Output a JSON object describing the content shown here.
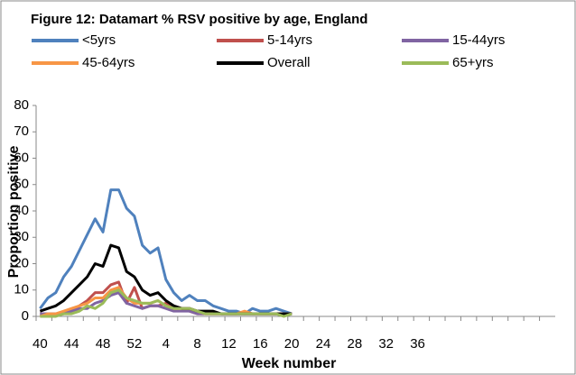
{
  "chart_data": {
    "type": "line",
    "title": "Figure 12: Datamart % RSV positive by age, England",
    "x_label": "Week number",
    "y_label": "Proportion positive",
    "categories": [
      40,
      null,
      null,
      null,
      44,
      null,
      null,
      null,
      48,
      null,
      null,
      null,
      52,
      null,
      null,
      null,
      4,
      null,
      null,
      null,
      8,
      null,
      null,
      null,
      12,
      null,
      null,
      null,
      16,
      null,
      null,
      null,
      20,
      null,
      null,
      null,
      24,
      null,
      null,
      null,
      28,
      null,
      null,
      null,
      32,
      null,
      null,
      null,
      36,
      null,
      null,
      null,
      null,
      null,
      null,
      null,
      null,
      null,
      null,
      null,
      null,
      null,
      null,
      null,
      null,
      null
    ],
    "ylim": [
      0,
      80
    ],
    "yticks": [
      0,
      10,
      20,
      30,
      40,
      50,
      60,
      70,
      80
    ],
    "grid": false,
    "series": [
      {
        "name": "<5yrs",
        "color": "#4f81bd",
        "values": [
          3,
          7,
          9,
          15,
          19,
          25,
          31,
          37,
          32,
          48,
          48,
          41,
          38,
          27,
          24,
          26,
          14,
          9,
          6,
          8,
          6,
          6,
          4,
          3,
          2,
          2,
          1,
          3,
          2,
          2,
          3,
          2,
          1,
          null,
          null,
          null,
          null,
          null,
          null,
          null,
          null,
          null,
          null,
          null,
          null,
          null,
          null,
          null,
          null,
          null,
          null,
          null,
          null,
          null,
          null,
          null,
          null,
          null,
          null,
          null,
          null,
          null,
          null,
          null,
          null,
          null
        ]
      },
      {
        "name": "5-14yrs",
        "color": "#c0504d",
        "values": [
          1,
          1,
          1,
          1,
          2,
          4,
          6,
          9,
          9,
          12,
          13,
          5,
          11,
          3,
          4,
          4,
          5,
          4,
          3,
          2,
          1,
          1,
          1,
          1,
          1,
          1,
          1,
          1,
          1,
          1,
          1,
          1,
          1,
          null,
          null,
          null,
          null,
          null,
          null,
          null,
          null,
          null,
          null,
          null,
          null,
          null,
          null,
          null,
          null,
          null,
          null,
          null,
          null,
          null,
          null,
          null,
          null,
          null,
          null,
          null,
          null,
          null,
          null,
          null,
          null,
          null
        ]
      },
      {
        "name": "15-44yrs",
        "color": "#8064a2",
        "values": [
          1,
          1,
          1,
          1,
          2,
          3,
          3,
          5,
          6,
          8,
          9,
          5,
          4,
          3,
          4,
          4,
          3,
          2,
          2,
          2,
          1,
          1,
          1,
          1,
          1,
          1,
          1,
          1,
          1,
          1,
          1,
          1,
          1,
          null,
          null,
          null,
          null,
          null,
          null,
          null,
          null,
          null,
          null,
          null,
          null,
          null,
          null,
          null,
          null,
          null,
          null,
          null,
          null,
          null,
          null,
          null,
          null,
          null,
          null,
          null,
          null,
          null,
          null,
          null,
          null,
          null
        ]
      },
      {
        "name": "45-64yrs",
        "color": "#f79646",
        "values": [
          0,
          1,
          1,
          2,
          3,
          4,
          5,
          7,
          7,
          10,
          11,
          7,
          5,
          5,
          5,
          6,
          4,
          3,
          3,
          3,
          2,
          1,
          1,
          1,
          1,
          1,
          2,
          1,
          1,
          1,
          1,
          1,
          1,
          null,
          null,
          null,
          null,
          null,
          null,
          null,
          null,
          null,
          null,
          null,
          null,
          null,
          null,
          null,
          null,
          null,
          null,
          null,
          null,
          null,
          null,
          null,
          null,
          null,
          null,
          null,
          null,
          null,
          null,
          null,
          null,
          null
        ]
      },
      {
        "name": "Overall",
        "color": "#000000",
        "values": [
          2,
          3,
          4,
          6,
          9,
          12,
          15,
          20,
          19,
          27,
          26,
          17,
          15,
          10,
          8,
          9,
          6,
          4,
          3,
          3,
          2,
          2,
          2,
          1,
          1,
          1,
          1,
          1,
          1,
          1,
          1,
          1,
          1,
          null,
          null,
          null,
          null,
          null,
          null,
          null,
          null,
          null,
          null,
          null,
          null,
          null,
          null,
          null,
          null,
          null,
          null,
          null,
          null,
          null,
          null,
          null,
          null,
          null,
          null,
          null,
          null,
          null,
          null,
          null,
          null,
          null
        ]
      },
      {
        "name": "65+yrs",
        "color": "#9bbb59",
        "values": [
          0,
          0,
          0,
          1,
          1,
          2,
          4,
          3,
          5,
          9,
          10,
          7,
          6,
          5,
          5,
          6,
          4,
          3,
          3,
          3,
          2,
          1,
          1,
          1,
          1,
          1,
          1,
          1,
          1,
          1,
          1,
          0,
          1,
          null,
          null,
          null,
          null,
          null,
          null,
          null,
          null,
          null,
          null,
          null,
          null,
          null,
          null,
          null,
          null,
          null,
          null,
          null,
          null,
          null,
          null,
          null,
          null,
          null,
          null,
          null,
          null,
          null,
          null,
          null,
          null,
          null
        ]
      }
    ]
  }
}
